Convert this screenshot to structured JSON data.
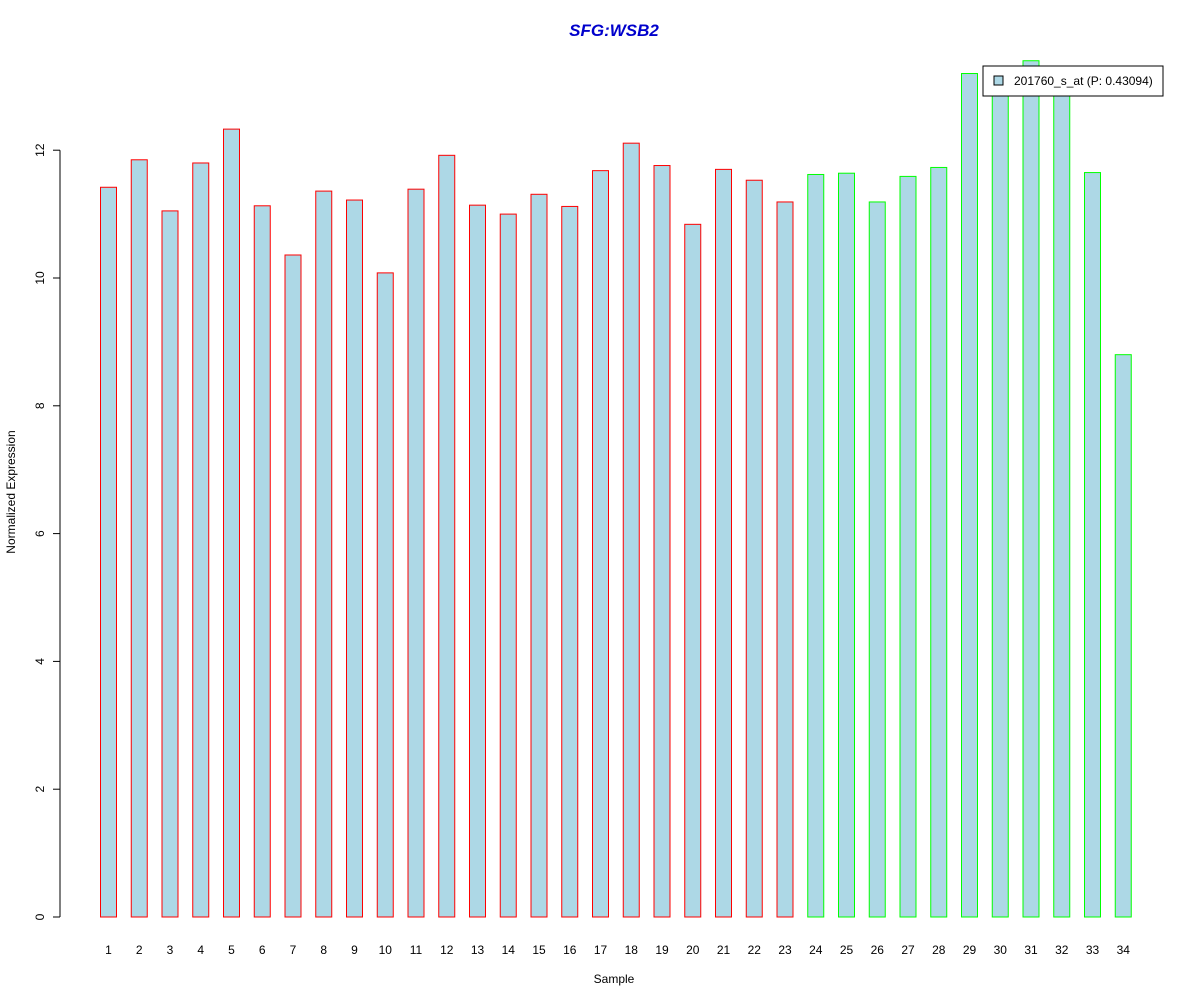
{
  "chart_data": {
    "type": "bar",
    "title": "SFG:WSB2",
    "xlabel": "Sample",
    "ylabel": "Normalized Expression",
    "ylim": [
      0,
      13.4
    ],
    "yticks": [
      0,
      2,
      4,
      6,
      8,
      10,
      12
    ],
    "grid": false,
    "legend_position": "top-right",
    "categories": [
      "1",
      "2",
      "3",
      "4",
      "5",
      "6",
      "7",
      "8",
      "9",
      "10",
      "11",
      "12",
      "13",
      "14",
      "15",
      "16",
      "17",
      "18",
      "19",
      "20",
      "21",
      "22",
      "23",
      "24",
      "25",
      "26",
      "27",
      "28",
      "29",
      "30",
      "31",
      "32",
      "33",
      "34"
    ],
    "series": [
      {
        "name": "201760_s_at (P: 0.43094)",
        "values": [
          11.42,
          11.85,
          11.05,
          11.8,
          12.33,
          11.13,
          10.36,
          11.36,
          11.22,
          10.08,
          11.39,
          11.92,
          11.14,
          11.0,
          11.31,
          11.12,
          11.68,
          12.11,
          11.76,
          10.84,
          11.7,
          11.53,
          11.19,
          11.62,
          11.64,
          11.19,
          11.59,
          11.73,
          13.2,
          12.95,
          13.4,
          12.95,
          11.65,
          8.8
        ],
        "groups": [
          "a",
          "a",
          "a",
          "a",
          "a",
          "a",
          "a",
          "a",
          "a",
          "a",
          "a",
          "a",
          "a",
          "a",
          "a",
          "a",
          "a",
          "a",
          "a",
          "a",
          "a",
          "a",
          "a",
          "b",
          "b",
          "b",
          "b",
          "b",
          "b",
          "b",
          "b",
          "b",
          "b",
          "b"
        ]
      }
    ],
    "colors": {
      "fill": "#add8e6",
      "group_a_border": "#ff0000",
      "group_b_border": "#00ff00",
      "title": "#0000cc"
    }
  }
}
